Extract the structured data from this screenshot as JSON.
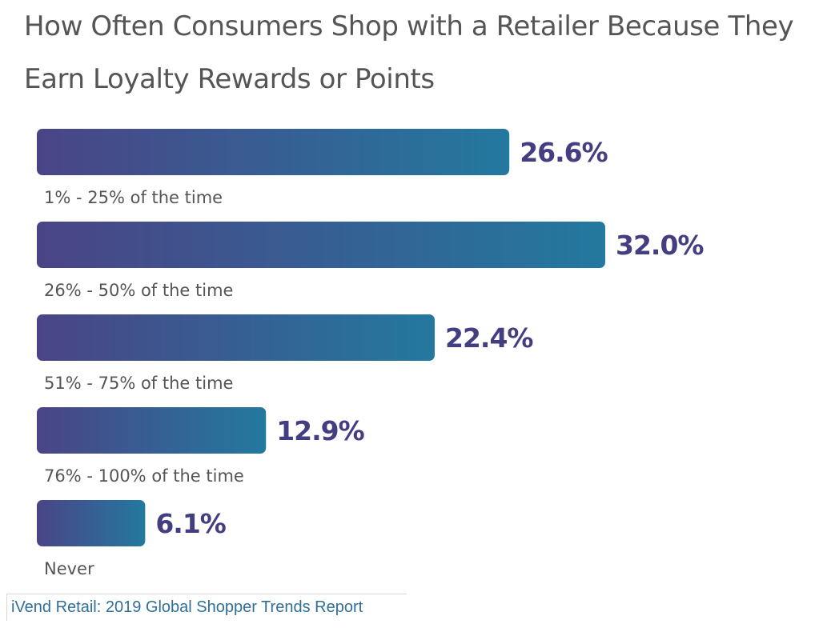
{
  "chart_data": {
    "type": "bar",
    "orientation": "horizontal",
    "title": "How Often Consumers Shop with a Retailer Because They Earn Loyalty Rewards or Points",
    "categories": [
      "1% - 25% of the time",
      "26% - 50% of the time",
      "51% - 75% of the time",
      "76% - 100% of the time",
      "Never"
    ],
    "values": [
      26.6,
      32.0,
      22.4,
      12.9,
      6.1
    ],
    "value_labels": [
      "26.6%",
      "32.0%",
      "22.4%",
      "12.9%",
      "6.1%"
    ],
    "unit": "%",
    "xlabel": "",
    "ylabel": "",
    "xlim": [
      0,
      32.0
    ],
    "grid": false,
    "legend": "none",
    "colors": {
      "bar_start": "#4a4486",
      "bar_end": "#23799f",
      "value_label": "#433e82",
      "category_label": "#555555"
    }
  },
  "source": {
    "text": "iVend Retail: 2019 Global Shopper Trends Report"
  }
}
